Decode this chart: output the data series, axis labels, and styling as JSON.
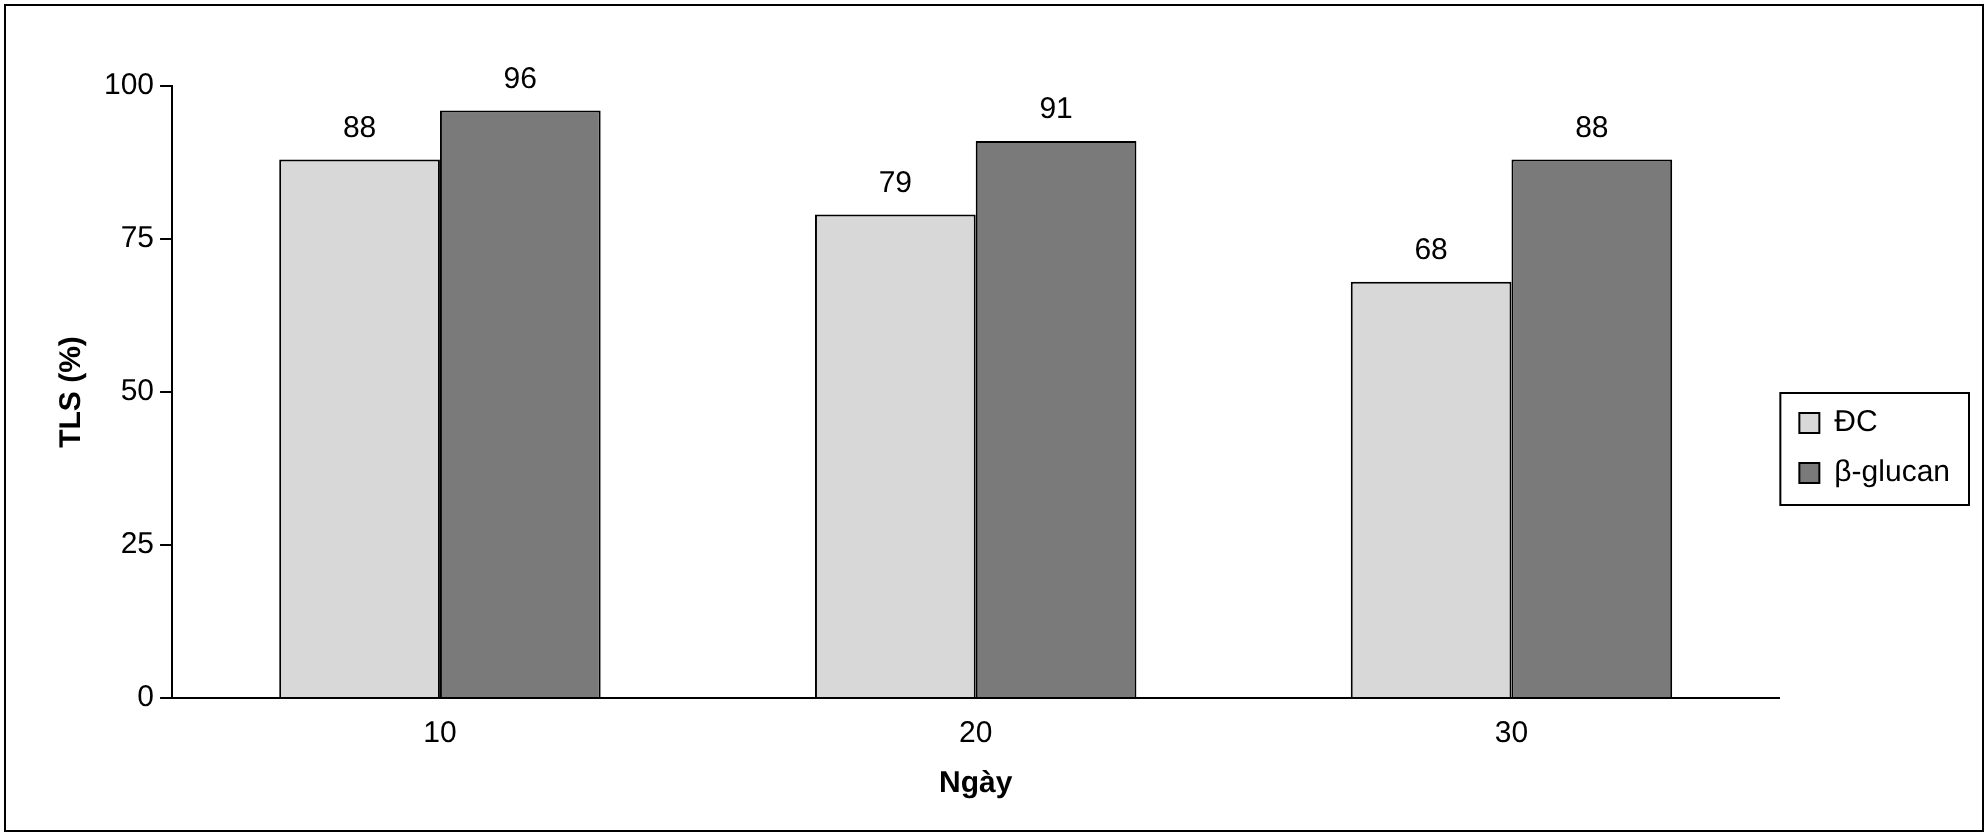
{
  "chart_data": {
    "type": "bar",
    "xlabel": "Ngày",
    "ylabel": "TLS (%)",
    "categories": [
      "10",
      "20",
      "30"
    ],
    "series": [
      {
        "name": "ĐC",
        "color": "#d8d8d8",
        "values": [
          88,
          79,
          68
        ]
      },
      {
        "name": "β-glucan",
        "color": "#7a7a7a",
        "values": [
          96,
          91,
          88
        ]
      }
    ],
    "ylim": [
      0,
      100
    ],
    "yticks": [
      0,
      25,
      50,
      75,
      100
    ],
    "grid": false,
    "legend": "right",
    "data_labels": true
  }
}
